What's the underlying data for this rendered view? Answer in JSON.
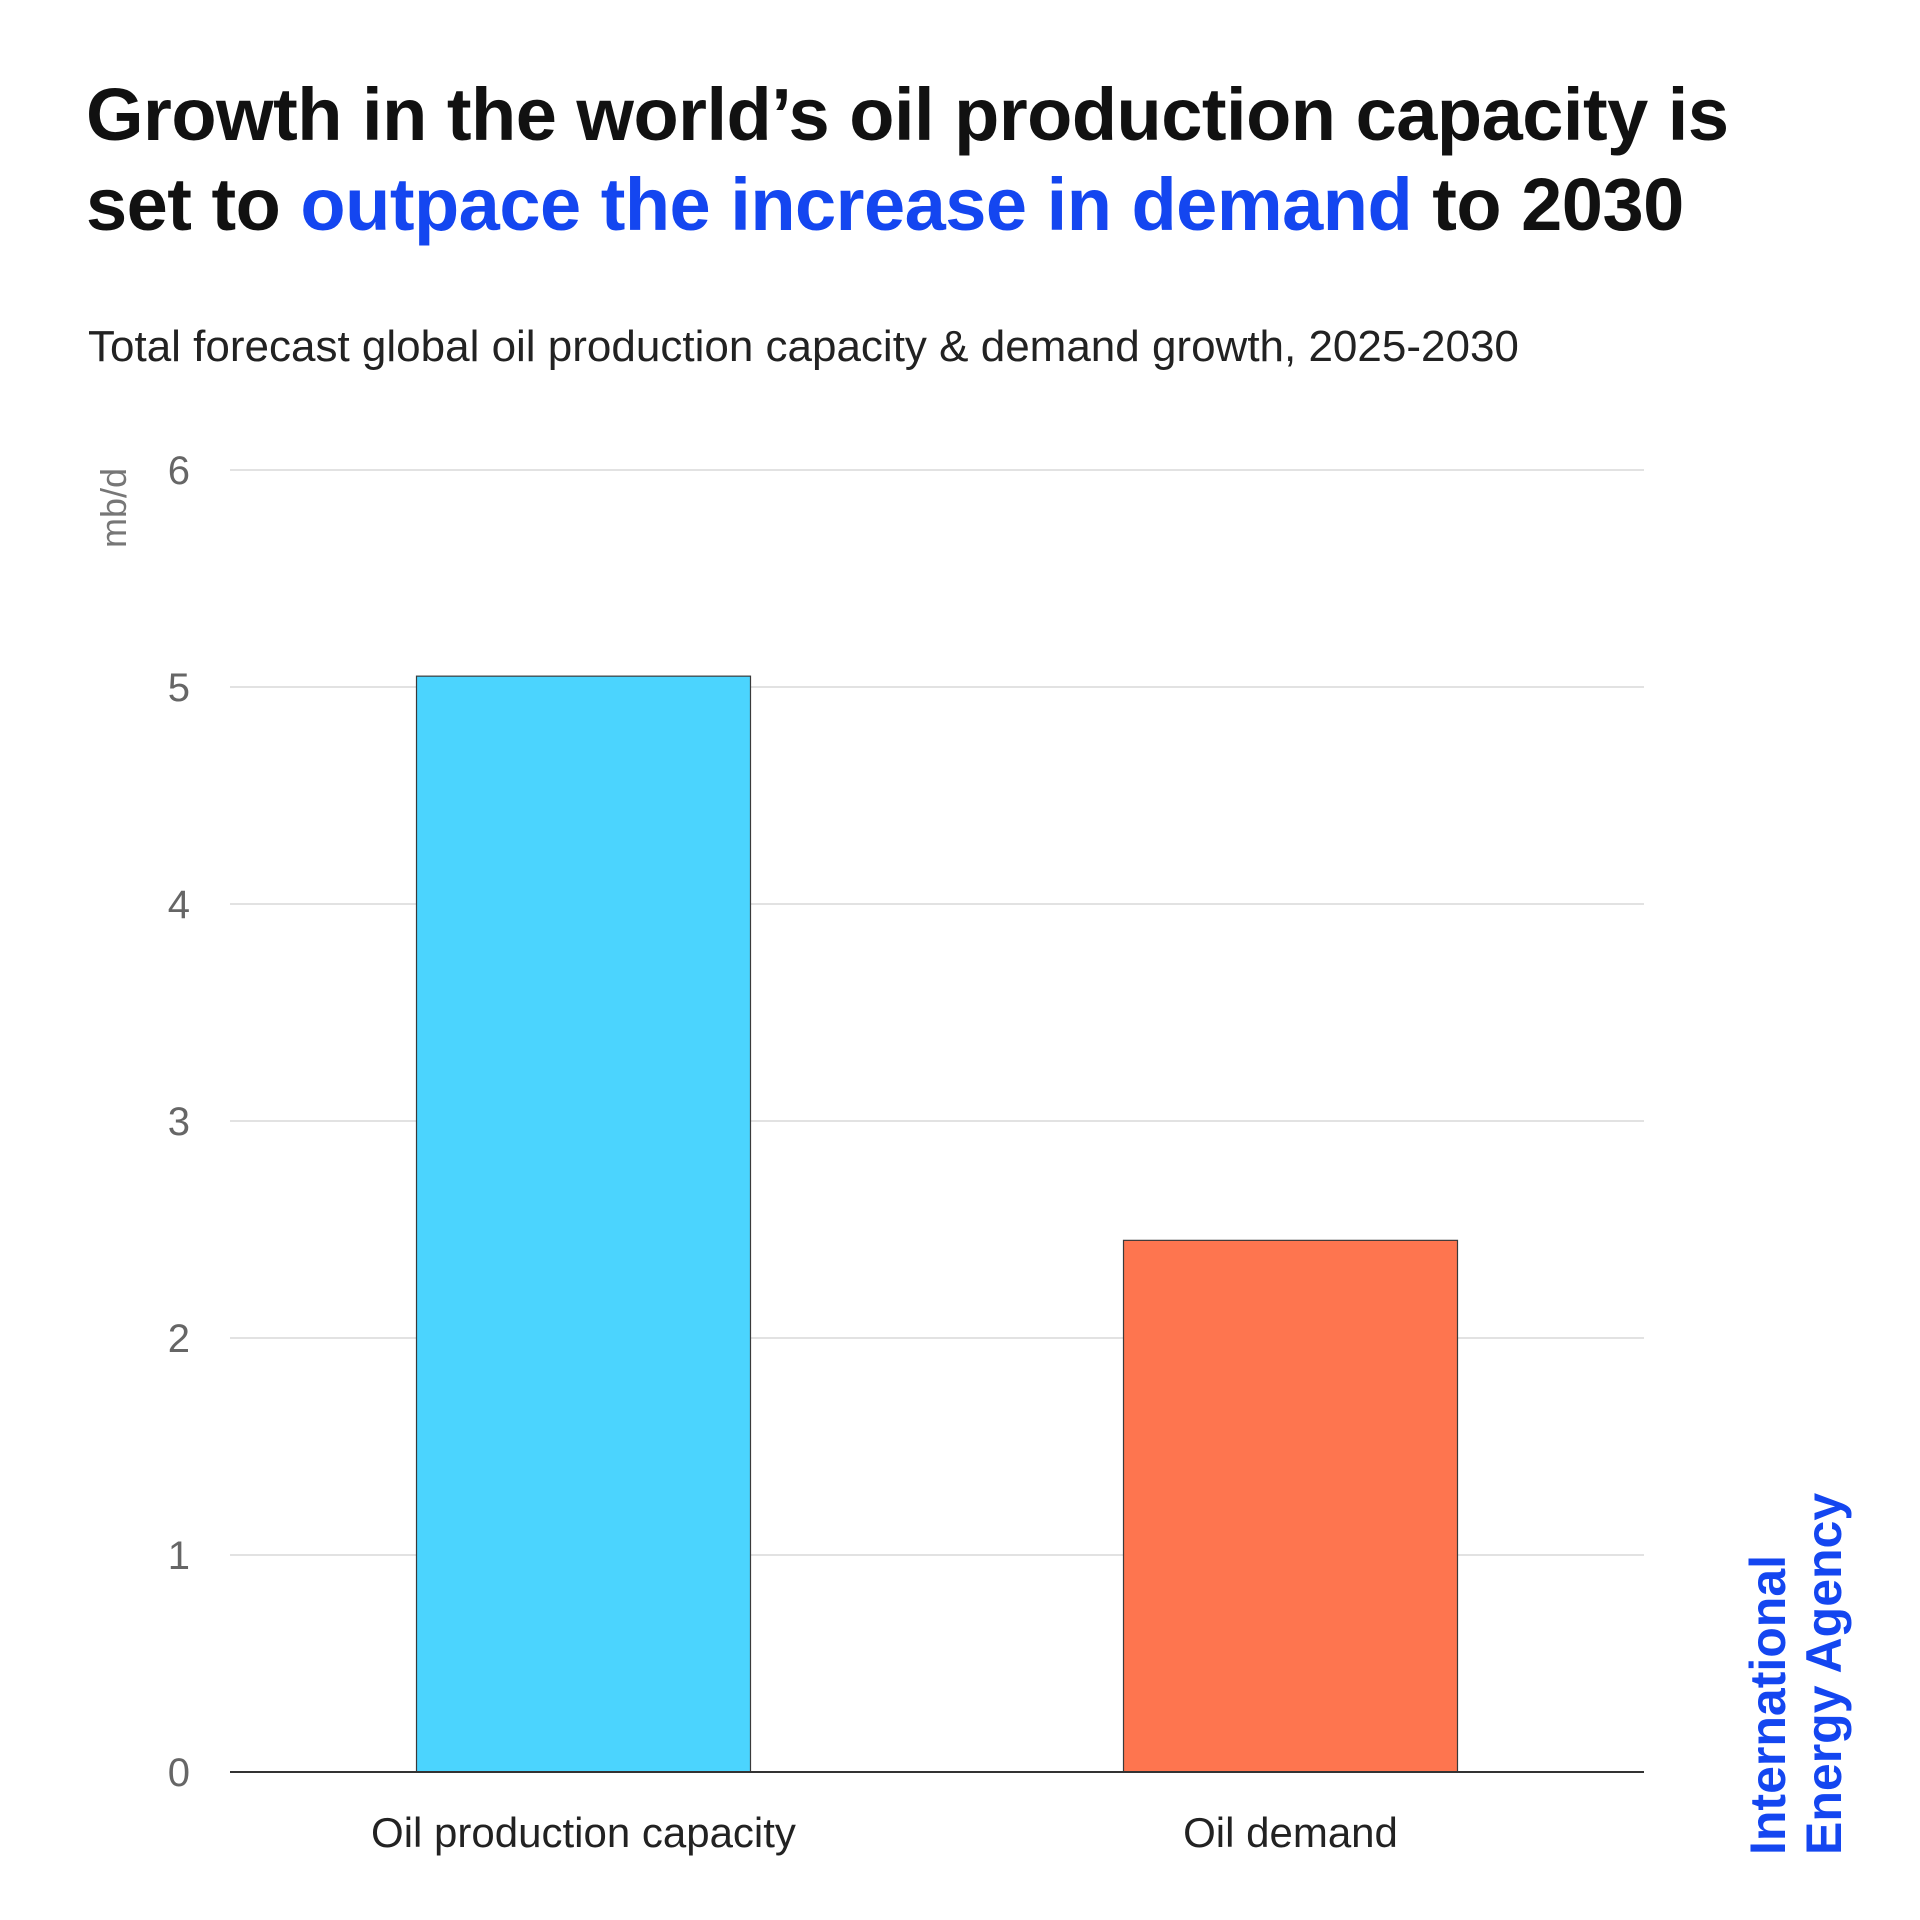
{
  "header": {
    "title_part1": "Growth in the world’s oil production capacity is set to ",
    "title_highlight": "outpace the increase in demand",
    "title_part2": " to 2030",
    "subtitle": "Total forecast global oil production capacity & demand growth, 2025-2030"
  },
  "branding": {
    "line1": "International",
    "line2": "Energy Agency"
  },
  "colors": {
    "highlight": "#1446f0",
    "bar_capacity": "#4bd4fe",
    "bar_demand": "#fe754f",
    "grid": "#d8d8d8",
    "tick_text": "#666666"
  },
  "chart_data": {
    "type": "bar",
    "title": "Total forecast global oil production capacity & demand growth, 2025-2030",
    "categories": [
      "Oil production capacity",
      "Oil demand"
    ],
    "values": [
      5.05,
      2.45
    ],
    "bar_colors": [
      "#4bd4fe",
      "#fe754f"
    ],
    "xlabel": "",
    "ylabel": "mb/d",
    "ylim": [
      0,
      6
    ],
    "yticks": [
      0,
      1,
      2,
      3,
      4,
      5,
      6
    ],
    "grid": true
  }
}
